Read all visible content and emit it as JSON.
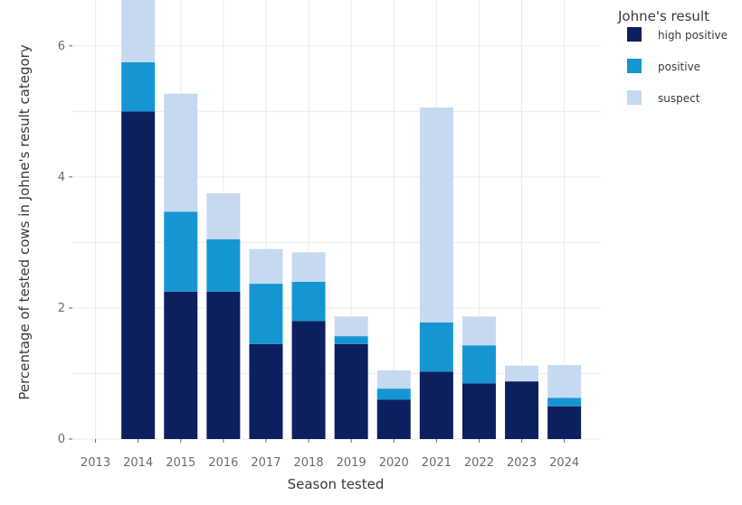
{
  "chart_data": {
    "type": "bar",
    "stacked": true,
    "title": "",
    "xlabel": "Season tested",
    "ylabel": "Percentage of tested cows in Johne's result category",
    "categories": [
      "2013",
      "2014",
      "2015",
      "2016",
      "2017",
      "2018",
      "2019",
      "2020",
      "2021",
      "2022",
      "2023",
      "2024"
    ],
    "ylim": [
      0,
      6.7
    ],
    "yticks": [
      0,
      2,
      4,
      6
    ],
    "grid": true,
    "legend": {
      "title": "Johne's result",
      "placement": "right"
    },
    "series": [
      {
        "name": "high positive",
        "color": "#0c1f5e",
        "values": [
          0,
          5.0,
          2.25,
          2.25,
          1.45,
          1.8,
          1.45,
          0.6,
          1.03,
          0.85,
          0.88,
          0.5
        ]
      },
      {
        "name": "positive",
        "color": "#1596d2",
        "values": [
          0,
          0.75,
          1.22,
          0.8,
          0.92,
          0.6,
          0.12,
          0.17,
          0.75,
          0.58,
          0,
          0.13
        ]
      },
      {
        "name": "suspect",
        "color": "#c6d9f0",
        "values": [
          0,
          0.95,
          1.8,
          0.7,
          0.53,
          0.45,
          0.3,
          0.28,
          3.28,
          0.44,
          0.24,
          0.5
        ]
      }
    ]
  }
}
